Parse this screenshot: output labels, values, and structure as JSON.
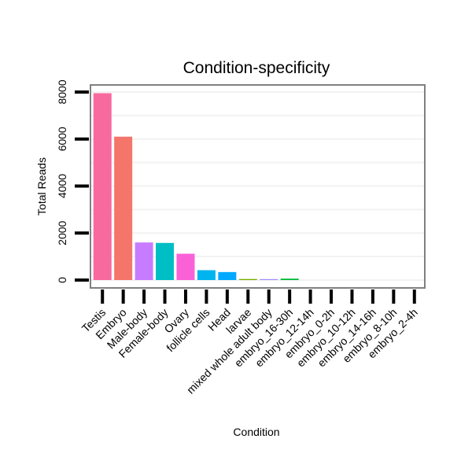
{
  "chart_data": {
    "type": "bar",
    "title": "Condition-specificity",
    "xlabel": "Condition",
    "ylabel": "Total Reads",
    "ylim": [
      0,
      8300
    ],
    "yticks": [
      0,
      2000,
      4000,
      6000,
      8000
    ],
    "grid": true,
    "categories": [
      "Testis",
      "Embryo",
      "Male-body",
      "Female-body",
      "Ovary",
      "follicle cells",
      "Head",
      "larvae",
      "mixed whole adult body",
      "embryo_16-30h",
      "embryo_12-14h",
      "embryo_0-2h",
      "embryo_10-12h",
      "embryo_14-16h",
      "embryo_8-10h",
      "embryo_2-4h"
    ],
    "values": [
      7950,
      6100,
      1600,
      1580,
      1120,
      420,
      340,
      45,
      40,
      60,
      0,
      0,
      0,
      0,
      0,
      0
    ],
    "colors": [
      "#f8699e",
      "#f4756a",
      "#c77cff",
      "#00bfc4",
      "#fb61d7",
      "#00b4ef",
      "#00a9ff",
      "#7cae00",
      "#a58aff",
      "#00ba38",
      "#53b400",
      "#00c094",
      "#e76bf3",
      "#b79f00",
      "#de8c00",
      "#619cff"
    ]
  }
}
